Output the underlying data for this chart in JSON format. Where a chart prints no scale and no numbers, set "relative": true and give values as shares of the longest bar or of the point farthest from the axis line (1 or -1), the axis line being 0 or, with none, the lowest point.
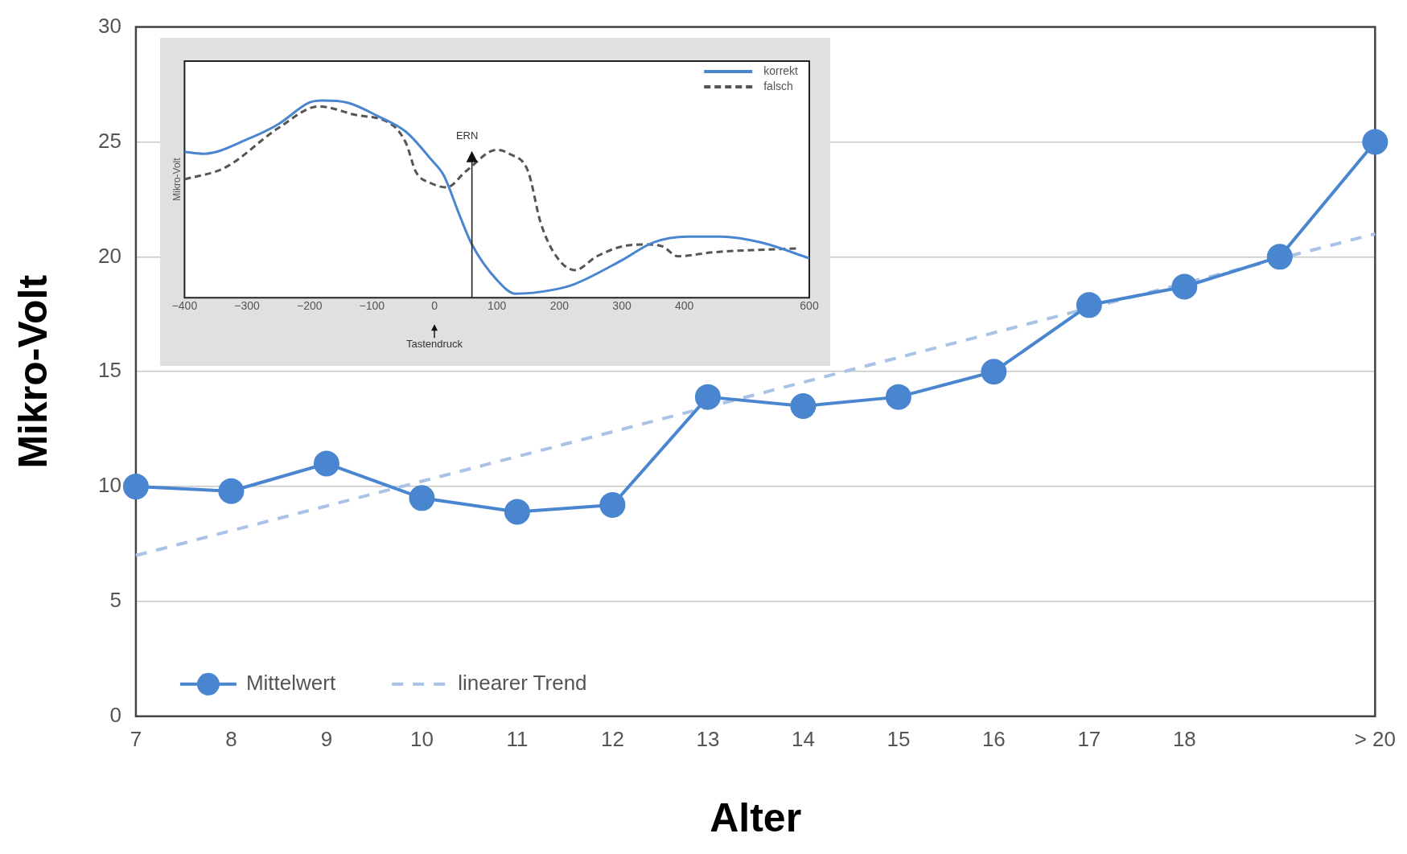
{
  "chart_data": [
    {
      "type": "line",
      "xlabel": "Alter",
      "ylabel": "Mikro-Volt",
      "categories": [
        "7",
        "8",
        "9",
        "10",
        "11",
        "12",
        "13",
        "14",
        "15",
        "16",
        "17",
        "18",
        null,
        "> 20"
      ],
      "series": [
        {
          "name": "Mittelwert",
          "color": "#4a86d0",
          "marker": "circle",
          "line_style": "solid",
          "values": [
            10.0,
            9.8,
            11.0,
            9.5,
            8.9,
            9.2,
            13.9,
            13.5,
            13.9,
            15.0,
            17.9,
            18.7,
            20.0,
            25.0
          ]
        },
        {
          "name": "linearer Trend",
          "type": "line",
          "color": "#a9c2e6",
          "marker": "none",
          "line_style": "dashed",
          "values": [
            7.0,
            null,
            null,
            null,
            null,
            null,
            null,
            null,
            null,
            null,
            null,
            null,
            null,
            21.0
          ]
        }
      ],
      "ylim": [
        0,
        30
      ],
      "yticks": [
        0,
        5,
        10,
        15,
        20,
        25,
        30
      ],
      "grid": "y",
      "legend": "bottom left"
    },
    {
      "type": "line",
      "ylabel": "Mikro-Volt",
      "relative": true,
      "xlim": [
        -400,
        600
      ],
      "xticks": [
        -400,
        -300,
        -200,
        -100,
        0,
        100,
        200,
        300,
        400,
        600
      ],
      "series": [
        {
          "name": "korrekt",
          "color": "#4a86d0",
          "line_style": "solid",
          "x": [
            -400,
            -370,
            -295,
            -250,
            -200,
            -180,
            -140,
            -90,
            -45,
            -5,
            15,
            40,
            60,
            100,
            130,
            190,
            225,
            300,
            350,
            406,
            458,
            523,
            600
          ],
          "values": [
            0.74,
            0.73,
            0.81,
            0.88,
            0.99,
            1.0,
            0.99,
            0.92,
            0.84,
            0.7,
            0.62,
            0.42,
            0.27,
            0.09,
            0.02,
            0.04,
            0.07,
            0.19,
            0.28,
            0.31,
            0.31,
            0.28,
            0.2
          ]
        },
        {
          "name": "falsch",
          "color": "#555555",
          "line_style": "dashed",
          "x": [
            -400,
            -335,
            -250,
            -185,
            -130,
            -65,
            -45,
            -30,
            -5,
            20,
            50,
            100,
            120,
            150,
            170,
            195,
            225,
            260,
            300,
            340,
            365,
            390,
            445,
            580
          ],
          "values": [
            0.6,
            0.66,
            0.86,
            0.97,
            0.93,
            0.87,
            0.78,
            0.64,
            0.58,
            0.56,
            0.64,
            0.75,
            0.73,
            0.64,
            0.38,
            0.21,
            0.14,
            0.21,
            0.26,
            0.27,
            0.26,
            0.21,
            0.23,
            0.25
          ]
        }
      ],
      "marker": "none",
      "legend": "top right",
      "ref_lines": [
        {
          "axis": "x",
          "value": 60,
          "label": "ERN"
        },
        {
          "axis": "x",
          "value": 0,
          "label": "Tastendruck"
        }
      ]
    }
  ]
}
